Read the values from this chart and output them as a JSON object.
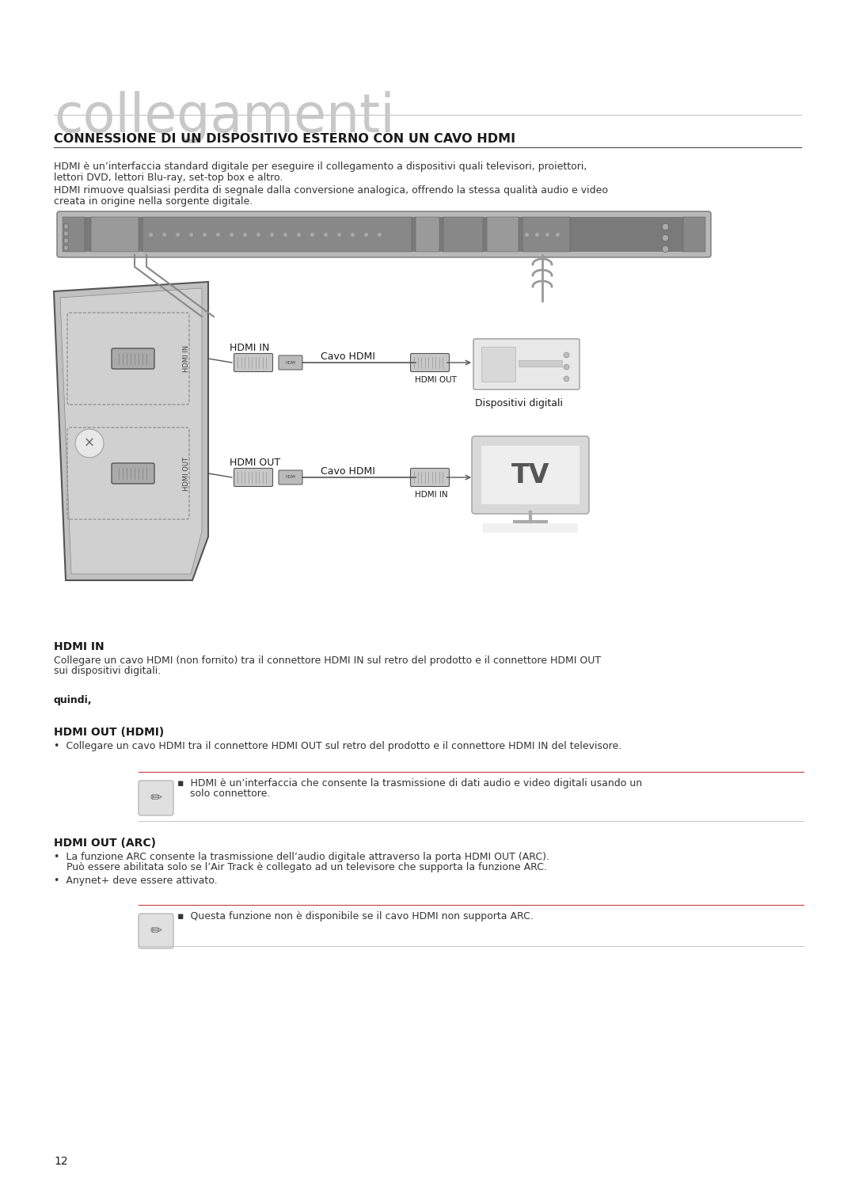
{
  "bg_color": "#ffffff",
  "title_large": "collegamenti",
  "title_large_fontsize": 48,
  "title_large_color": "#c8c8c8",
  "section_title": "CONNESSIONE DI UN DISPOSITIVO ESTERNO CON UN CAVO HDMI",
  "section_title_fontsize": 11.5,
  "para1_line1": "HDMI è un’interfaccia standard digitale per eseguire il collegamento a dispositivi quali televisori, proiettori,",
  "para1_line2": "lettori DVD, lettori Blu-ray, set-top box e altro.",
  "para2_line1": "HDMI rimuove qualsiasi perdita di segnale dalla conversione analogica, offrendo la stessa qualità audio e video",
  "para2_line2": "creata in origine nella sorgente digitale.",
  "label_hdmi_in_row": "HDMI IN",
  "label_hdmi_out_row": "HDMI OUT",
  "label_cavo_hdmi": "Cavo HDMI",
  "label_hdmi_out_port": "HDMI OUT",
  "label_hdmi_in_port": "HDMI IN",
  "label_dispositivi": "Dispositivi digitali",
  "section2_title": "HDMI IN",
  "section2_body_line1": "Collegare un cavo HDMI (non fornito) tra il connettore HDMI IN sul retro del prodotto e il connettore HDMI OUT",
  "section2_body_line2": "sui dispositivi digitali.",
  "label_quindi": "quindi,",
  "section3_title": "HDMI OUT (HDMI)",
  "section3_bullet": "•  Collegare un cavo HDMI tra il connettore HDMI OUT sul retro del prodotto e il connettore HDMI IN del televisore.",
  "note1_line1": "▪  HDMI è un’interfaccia che consente la trasmissione di dati audio e video digitali usando un",
  "note1_line2": "    solo connettore.",
  "section4_title": "HDMI OUT (ARC)",
  "section4_b1_l1": "•  La funzione ARC consente la trasmissione dell’audio digitale attraverso la porta HDMI OUT (ARC).",
  "section4_b1_l2": "    Può essere abilitata solo se l’Air Track è collegato ad un televisore che supporta la funzione ARC.",
  "section4_bullet2": "•  Anynet+ deve essere attivato.",
  "note2": "▪  Questa funzione non è disponibile se il cavo HDMI non supporta ARC.",
  "page_number": "12",
  "text_color": "#333333",
  "dark_color": "#1a1a1a",
  "body_fontsize": 9.0,
  "small_fontsize": 8.0,
  "note_top_line_color": "#c04040",
  "note_bot_line_color": "#bbbbbb"
}
